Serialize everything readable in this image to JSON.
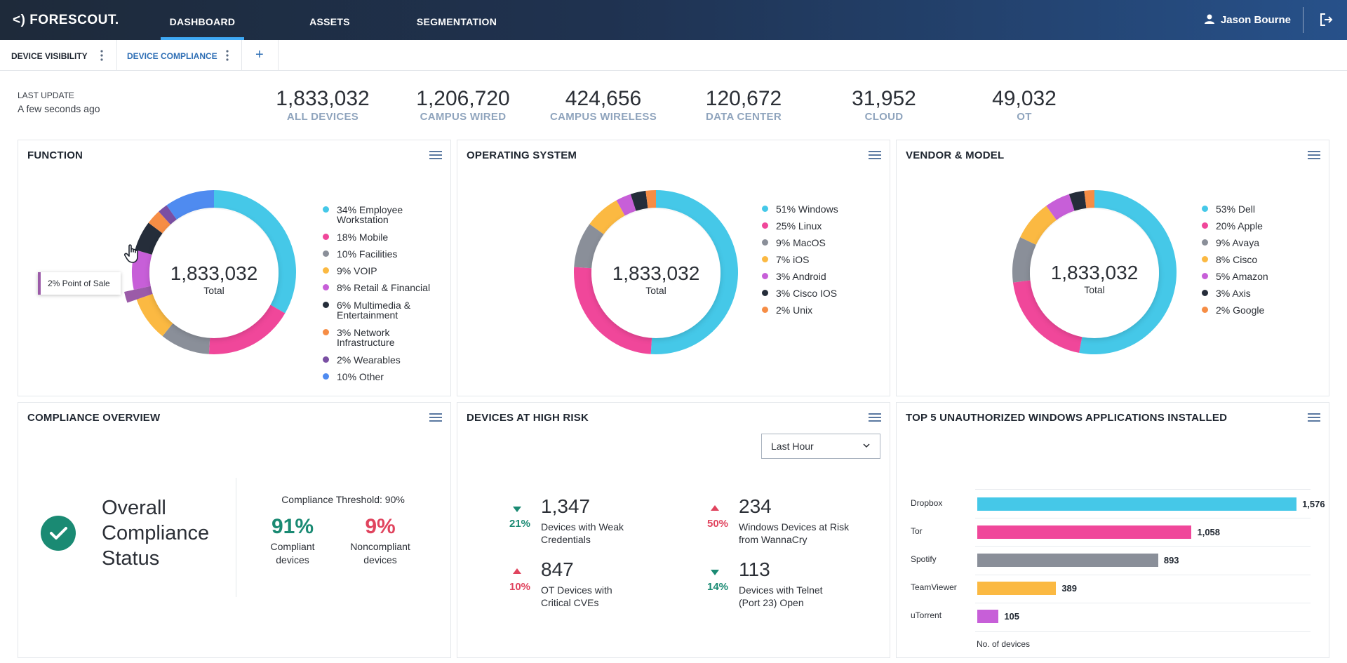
{
  "app": {
    "logo": "<) FORESCOUT.",
    "nav": [
      "DASHBOARD",
      "ASSETS",
      "SEGMENTATION"
    ],
    "user_name": "Jason Bourne"
  },
  "tabs": [
    {
      "label": "DEVICE VISIBILITY"
    },
    {
      "label": "DEVICE COMPLIANCE"
    }
  ],
  "add_tab_label": "+",
  "summary": {
    "last_update_label": "LAST UPDATE",
    "last_update_value": "A few seconds ago",
    "stats": [
      {
        "value": "1,833,032",
        "label": "ALL DEVICES"
      },
      {
        "value": "1,206,720",
        "label": "CAMPUS WIRED"
      },
      {
        "value": "424,656",
        "label": "CAMPUS WIRELESS"
      },
      {
        "value": "120,672",
        "label": "DATA CENTER"
      },
      {
        "value": "31,952",
        "label": "CLOUD"
      },
      {
        "value": "49,032",
        "label": "OT"
      }
    ]
  },
  "panels": {
    "function": {
      "title": "FUNCTION",
      "total": "1,833,032",
      "total_label": "Total",
      "tooltip": "2% Point of Sale",
      "legend": [
        "34% Employee Workstation",
        "18% Mobile",
        "10% Facilities",
        "9% VOIP",
        "8% Retail & Financial",
        "6% Multimedia & Entertainment",
        "3% Network Infrastructure",
        "2% Wearables",
        "10% Other"
      ]
    },
    "os": {
      "title": "OPERATING SYSTEM",
      "total": "1,833,032",
      "total_label": "Total",
      "legend": [
        "51% Windows",
        "25% Linux",
        "9% MacOS",
        "7% iOS",
        "3% Android",
        "3% Cisco IOS",
        "2% Unix"
      ]
    },
    "vendor": {
      "title": "VENDOR & MODEL",
      "total": "1,833,032",
      "total_label": "Total",
      "legend": [
        "53% Dell",
        "20% Apple",
        "9% Avaya",
        "8% Cisco",
        "5% Amazon",
        "3% Axis",
        "2% Google"
      ]
    },
    "compliance": {
      "title": "COMPLIANCE OVERVIEW",
      "status": "Overall Compliance Status",
      "threshold": "Compliance Threshold: 90%",
      "compliant_pct": "91%",
      "compliant_label": "Compliant devices",
      "noncompliant_pct": "9%",
      "noncompliant_label": "Noncompliant devices"
    },
    "risk": {
      "title": "DEVICES AT HIGH RISK",
      "period": "Last Hour",
      "items": [
        {
          "pct": "21%",
          "trend": "down",
          "value": "1,347",
          "label": "Devices with Weak Credentials"
        },
        {
          "pct": "50%",
          "trend": "up",
          "value": "234",
          "label": "Windows Devices at Risk from WannaCry"
        },
        {
          "pct": "10%",
          "trend": "up",
          "value": "847",
          "label": "OT Devices with Critical CVEs"
        },
        {
          "pct": "14%",
          "trend": "down",
          "value": "113",
          "label": "Devices with Telnet (Port 23) Open"
        }
      ]
    },
    "apps": {
      "title": "TOP 5 UNAUTHORIZED WINDOWS APPLICATIONS INSTALLED"
    }
  },
  "colors": {
    "cyan": "#45c8e8",
    "pink": "#f0479a",
    "gray": "#8a8f99",
    "yellow": "#fbb942",
    "violet": "#c75fd8",
    "navy": "#252d3a",
    "orange": "#f68d45",
    "purple": "#7a4fa3",
    "blue": "#4f8bf0",
    "green": "#1a8a73",
    "red": "#e0445e"
  },
  "chart_data": [
    {
      "type": "pie",
      "title": "FUNCTION",
      "categories": [
        "Employee Workstation",
        "Mobile",
        "Facilities",
        "VOIP",
        "Point of Sale",
        "Retail & Financial",
        "Multimedia & Entertainment",
        "Network Infrastructure",
        "Wearables",
        "Other"
      ],
      "values": [
        34,
        18,
        10,
        9,
        2,
        8,
        6,
        3,
        2,
        10
      ],
      "colors": [
        "#45c8e8",
        "#f0479a",
        "#8a8f99",
        "#fbb942",
        "#9b5ba8",
        "#c75fd8",
        "#252d3a",
        "#f68d45",
        "#7a4fa3",
        "#4f8bf0"
      ]
    },
    {
      "type": "pie",
      "title": "OPERATING SYSTEM",
      "categories": [
        "Windows",
        "Linux",
        "MacOS",
        "iOS",
        "Android",
        "Cisco IOS",
        "Unix"
      ],
      "values": [
        51,
        25,
        9,
        7,
        3,
        3,
        2
      ],
      "colors": [
        "#45c8e8",
        "#f0479a",
        "#8a8f99",
        "#fbb942",
        "#c75fd8",
        "#252d3a",
        "#f68d45"
      ]
    },
    {
      "type": "pie",
      "title": "VENDOR & MODEL",
      "categories": [
        "Dell",
        "Apple",
        "Avaya",
        "Cisco",
        "Amazon",
        "Axis",
        "Google"
      ],
      "values": [
        53,
        20,
        9,
        8,
        5,
        3,
        2
      ],
      "colors": [
        "#45c8e8",
        "#f0479a",
        "#8a8f99",
        "#fbb942",
        "#c75fd8",
        "#252d3a",
        "#f68d45"
      ]
    },
    {
      "type": "bar",
      "title": "TOP 5 UNAUTHORIZED WINDOWS APPLICATIONS INSTALLED",
      "orientation": "horizontal",
      "categories": [
        "Dropbox",
        "Tor",
        "Spotify",
        "TeamViewer",
        "uTorrent"
      ],
      "values": [
        1576,
        1058,
        893,
        389,
        105
      ],
      "value_labels": [
        "1,576",
        "1,058",
        "893",
        "389",
        "105"
      ],
      "colors": [
        "#45c8e8",
        "#f0479a",
        "#8a8f99",
        "#fbb942",
        "#c75fd8"
      ],
      "xlabel": "No. of devices",
      "xlim": [
        0,
        1600
      ]
    }
  ]
}
